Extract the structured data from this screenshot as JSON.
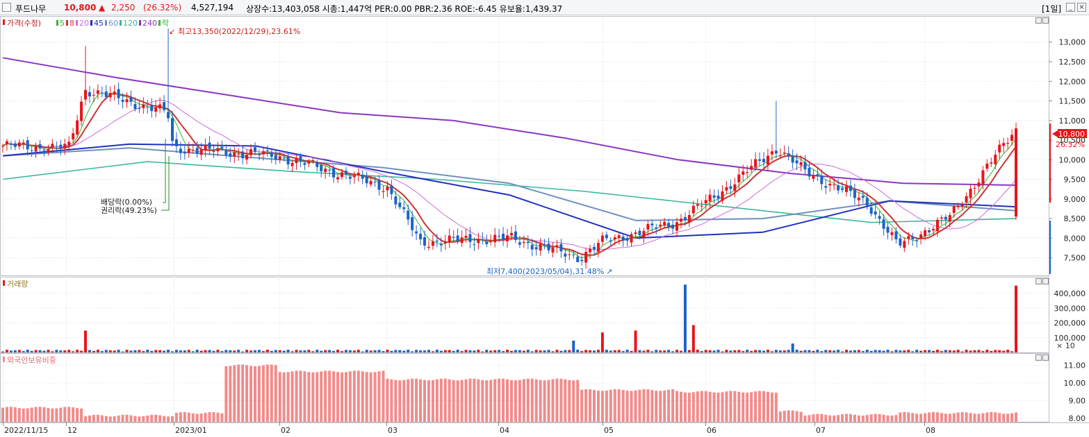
{
  "header": {
    "checkbox": "",
    "name": "푸드나무",
    "price": "10,800",
    "change_arrow": "▲",
    "change": "2,250",
    "change_pct": "(26.32%)",
    "volume": "4,527,194",
    "stats": "상장수:13,403,058 시총:1,447억 PER:0.00 PBR:2.36 ROE:-6.45 유보율:1,439.37",
    "period": "[1일]",
    "min_label": "_",
    "close_label": "×"
  },
  "colors": {
    "up": "#e8141b",
    "down": "#1c62c8",
    "ma5": "#2db82d",
    "ma8": "#cc3333",
    "ma20": "#d06ad6",
    "ma45": "#1f2fbf",
    "ma60": "#6f8fc0",
    "ma120": "#38b89a",
    "ma240": "#8a35c4",
    "foreign": "#f28b8b",
    "grid": "#d9dde3"
  },
  "price_panel": {
    "legend": [
      {
        "label": "가격(수정)",
        "color_key": "up"
      },
      {
        "label": "5",
        "color_key": "ma5"
      },
      {
        "label": "8",
        "color_key": "ma8"
      },
      {
        "label": "20",
        "color_key": "ma20"
      },
      {
        "label": "45",
        "color_key": "ma45"
      },
      {
        "label": "60",
        "color_key": "ma60"
      },
      {
        "label": "120",
        "color_key": "ma120"
      },
      {
        "label": "240",
        "color_key": "ma240"
      },
      {
        "label": "락",
        "color_key": "ma5"
      }
    ],
    "high_annotation": "최고13,350(2022/12/29),23.61%",
    "low_annotation": "최저7,400(2023/05/04),31.48%",
    "dividend_label": "배당락(0.00%)",
    "rights_label": "권리락(49.23%)",
    "current_price_label": "10,800",
    "current_pct_label": "26.32%"
  },
  "volume_panel": {
    "title": "거래량",
    "unit": "× 10"
  },
  "foreign_panel": {
    "title": "외국인보유비중"
  },
  "x_axis_labels": [
    "2022/11/15",
    "12",
    "2023/01",
    "02",
    "03",
    "04",
    "05",
    "06",
    "07",
    "08"
  ],
  "chart_data": [
    {
      "type": "candlestick",
      "title": "가격(수정)",
      "y_ticks": [
        "13,000",
        "12,500",
        "12,000",
        "11,500",
        "11,000",
        "10,500",
        "10,000",
        "9,500",
        "9,000",
        "8,500",
        "8,000",
        "7,500"
      ],
      "ylim": [
        7050,
        13650
      ],
      "high": {
        "value": 13350,
        "date": "2022/12/29"
      },
      "low": {
        "value": 7400,
        "date": "2023/05/04"
      },
      "last": {
        "value": 10800,
        "change": 2250,
        "change_pct": 26.32
      },
      "key_points": [
        {
          "x": "2022/11/15",
          "close": 10350
        },
        {
          "x": "2022/12",
          "close": 10300
        },
        {
          "x": "2022/12 spike",
          "high": 12900,
          "close": 11800
        },
        {
          "x": "2022/12/29",
          "high": 13350,
          "close": 11200
        },
        {
          "x": "2023/01",
          "close": 10300
        },
        {
          "x": "2023/02",
          "close": 10100
        },
        {
          "x": "2023/03",
          "close": 9300
        },
        {
          "x": "2023/03 low",
          "close": 7900
        },
        {
          "x": "2023/04",
          "close": 8000
        },
        {
          "x": "2023/05/04",
          "low": 7400,
          "close": 7500
        },
        {
          "x": "2023/05",
          "close": 7900
        },
        {
          "x": "2023/06",
          "close": 8400
        },
        {
          "x": "2023/06 mid",
          "close": 9100
        },
        {
          "x": "2023/06 spike",
          "high": 11500,
          "close": 10300
        },
        {
          "x": "2023/07",
          "close": 9700
        },
        {
          "x": "2023/07 end",
          "close": 8900
        },
        {
          "x": "2023/08",
          "close": 7800
        },
        {
          "x": "2023/08 end",
          "close": 8550
        },
        {
          "x": "last",
          "close": 10800
        }
      ],
      "moving_averages": {
        "ma240": [
          12600,
          12100,
          11650,
          11200,
          11000,
          10550,
          10000,
          9650,
          9400,
          9350
        ],
        "ma120": [
          9500,
          9950,
          9700,
          9500,
          9200,
          8800,
          8400,
          8500
        ],
        "ma60": [
          10100,
          10300,
          10050,
          9800,
          9400,
          8450,
          8500,
          8950,
          8700
        ],
        "ma45": [
          10100,
          10400,
          10350,
          9700,
          9100,
          8000,
          8150,
          8950,
          8800
        ]
      }
    },
    {
      "type": "bar",
      "title": "거래량",
      "y_ticks": [
        "400,000",
        "300,000",
        "200,000",
        "100,000"
      ],
      "ylim": [
        0,
        480000
      ],
      "unit": "× 10",
      "notable": [
        {
          "x": "2022/12 spike",
          "value": 148000
        },
        {
          "x": "2023/05 end",
          "value": 80000
        },
        {
          "x": "2023/06 early",
          "value": 135000
        },
        {
          "x": "2023/06",
          "value": 148000
        },
        {
          "x": "2023/06 spike",
          "value": 460000
        },
        {
          "x": "2023/06 next",
          "value": 185000
        },
        {
          "x": "2023/07",
          "value": 60000
        },
        {
          "x": "last",
          "value": 452719
        }
      ]
    },
    {
      "type": "bar",
      "title": "외국인보유비중",
      "y_ticks": [
        "11.00",
        "10.00",
        "9.00",
        "8.00"
      ],
      "ylim": [
        7.8,
        11.5
      ],
      "segments": [
        {
          "from": "2022/11/15",
          "to": "2022/12",
          "value": 8.6
        },
        {
          "from": "2022/12",
          "to": "2023/01",
          "value": 8.15
        },
        {
          "from": "2023/01",
          "to": "2023/01 end",
          "value": 8.3
        },
        {
          "from": "2023/01 end",
          "to": "2023/02",
          "value": 11.0
        },
        {
          "from": "2023/02",
          "to": "2023/03",
          "value": 10.65
        },
        {
          "from": "2023/03",
          "to": "2023/05",
          "value": 10.2
        },
        {
          "from": "2023/05",
          "to": "2023/06",
          "value": 9.6
        },
        {
          "from": "2023/06",
          "to": "2023/06 spike",
          "value": 9.5
        },
        {
          "from": "2023/07",
          "to": "2023/08",
          "value": 8.2
        },
        {
          "from": "2023/08",
          "to": "last",
          "value": 8.3
        }
      ]
    }
  ]
}
